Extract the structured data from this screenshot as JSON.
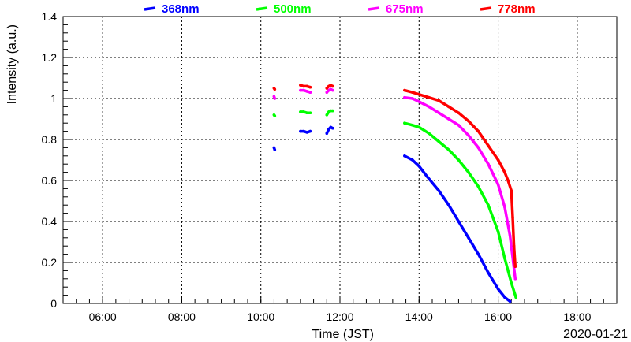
{
  "chart_data": {
    "type": "scatter",
    "title": "",
    "xlabel": "Time (JST)",
    "ylabel": "Intensity (a.u.)",
    "date_label": "2020-01-21",
    "xlim": [
      "05:00",
      "19:00"
    ],
    "ylim": [
      0,
      1.4
    ],
    "x_ticks": [
      "06:00",
      "08:00",
      "10:00",
      "12:00",
      "14:00",
      "16:00",
      "18:00"
    ],
    "y_ticks": [
      "0",
      "0.2",
      "0.4",
      "0.6",
      "0.8",
      "1",
      "1.2",
      "1.4"
    ],
    "grid": true,
    "legend_position": "top",
    "series": [
      {
        "name": "368nm",
        "color": "#0000ff",
        "segments": [
          [
            [
              "10:20",
              0.76
            ],
            [
              "10:21",
              0.75
            ]
          ],
          [
            [
              "11:00",
              0.84
            ],
            [
              "11:05",
              0.84
            ],
            [
              "11:10",
              0.835
            ],
            [
              "11:15",
              0.84
            ]
          ],
          [
            [
              "11:40",
              0.83
            ],
            [
              "11:43",
              0.85
            ],
            [
              "11:46",
              0.86
            ],
            [
              "11:49",
              0.855
            ]
          ],
          [
            [
              "13:38",
              0.72
            ],
            [
              "13:50",
              0.7
            ],
            [
              "14:00",
              0.67
            ],
            [
              "14:12",
              0.62
            ],
            [
              "14:30",
              0.55
            ],
            [
              "14:45",
              0.48
            ],
            [
              "15:00",
              0.4
            ],
            [
              "15:15",
              0.32
            ],
            [
              "15:30",
              0.24
            ],
            [
              "15:45",
              0.15
            ],
            [
              "16:00",
              0.07
            ],
            [
              "16:10",
              0.03
            ],
            [
              "16:18",
              0.01
            ]
          ]
        ]
      },
      {
        "name": "500nm",
        "color": "#00ff00",
        "segments": [
          [
            [
              "10:20",
              0.92
            ],
            [
              "10:21",
              0.915
            ]
          ],
          [
            [
              "11:00",
              0.935
            ],
            [
              "11:05",
              0.935
            ],
            [
              "11:10",
              0.93
            ],
            [
              "11:15",
              0.93
            ]
          ],
          [
            [
              "11:40",
              0.92
            ],
            [
              "11:43",
              0.935
            ],
            [
              "11:46",
              0.94
            ],
            [
              "11:49",
              0.94
            ]
          ],
          [
            [
              "13:38",
              0.88
            ],
            [
              "13:50",
              0.87
            ],
            [
              "14:00",
              0.86
            ],
            [
              "14:15",
              0.83
            ],
            [
              "14:30",
              0.79
            ],
            [
              "14:45",
              0.75
            ],
            [
              "15:00",
              0.7
            ],
            [
              "15:15",
              0.64
            ],
            [
              "15:30",
              0.57
            ],
            [
              "15:45",
              0.48
            ],
            [
              "16:00",
              0.35
            ],
            [
              "16:10",
              0.22
            ],
            [
              "16:20",
              0.1
            ],
            [
              "16:27",
              0.03
            ]
          ]
        ]
      },
      {
        "name": "675nm",
        "color": "#ff00ff",
        "segments": [
          [
            [
              "10:20",
              1.01
            ],
            [
              "10:21",
              1.0
            ]
          ],
          [
            [
              "11:00",
              1.04
            ],
            [
              "11:05",
              1.04
            ],
            [
              "11:10",
              1.035
            ],
            [
              "11:15",
              1.03
            ]
          ],
          [
            [
              "11:40",
              1.03
            ],
            [
              "11:43",
              1.04
            ],
            [
              "11:46",
              1.045
            ],
            [
              "11:49",
              1.04
            ]
          ],
          [
            [
              "13:38",
              1.005
            ],
            [
              "13:50",
              1.0
            ],
            [
              "14:00",
              0.985
            ],
            [
              "14:15",
              0.96
            ],
            [
              "14:30",
              0.93
            ],
            [
              "14:45",
              0.9
            ],
            [
              "15:00",
              0.87
            ],
            [
              "15:15",
              0.82
            ],
            [
              "15:30",
              0.76
            ],
            [
              "15:45",
              0.68
            ],
            [
              "16:00",
              0.58
            ],
            [
              "16:10",
              0.47
            ],
            [
              "16:18",
              0.33
            ],
            [
              "16:23",
              0.2
            ],
            [
              "16:26",
              0.12
            ]
          ]
        ]
      },
      {
        "name": "778nm",
        "color": "#ff0000",
        "segments": [
          [
            [
              "10:20",
              1.05
            ],
            [
              "10:21",
              1.045
            ]
          ],
          [
            [
              "11:00",
              1.065
            ],
            [
              "11:05",
              1.06
            ],
            [
              "11:10",
              1.06
            ],
            [
              "11:15",
              1.055
            ]
          ],
          [
            [
              "11:40",
              1.05
            ],
            [
              "11:43",
              1.06
            ],
            [
              "11:46",
              1.065
            ],
            [
              "11:49",
              1.06
            ]
          ],
          [
            [
              "13:38",
              1.04
            ],
            [
              "13:50",
              1.03
            ],
            [
              "14:00",
              1.02
            ],
            [
              "14:15",
              1.005
            ],
            [
              "14:30",
              0.99
            ],
            [
              "14:45",
              0.96
            ],
            [
              "15:00",
              0.93
            ],
            [
              "15:15",
              0.89
            ],
            [
              "15:30",
              0.84
            ],
            [
              "15:45",
              0.77
            ],
            [
              "16:00",
              0.7
            ],
            [
              "16:10",
              0.64
            ],
            [
              "16:15",
              0.6
            ],
            [
              "16:20",
              0.55
            ],
            [
              "16:22",
              0.42
            ],
            [
              "16:24",
              0.28
            ],
            [
              "16:26",
              0.18
            ]
          ]
        ]
      }
    ]
  }
}
